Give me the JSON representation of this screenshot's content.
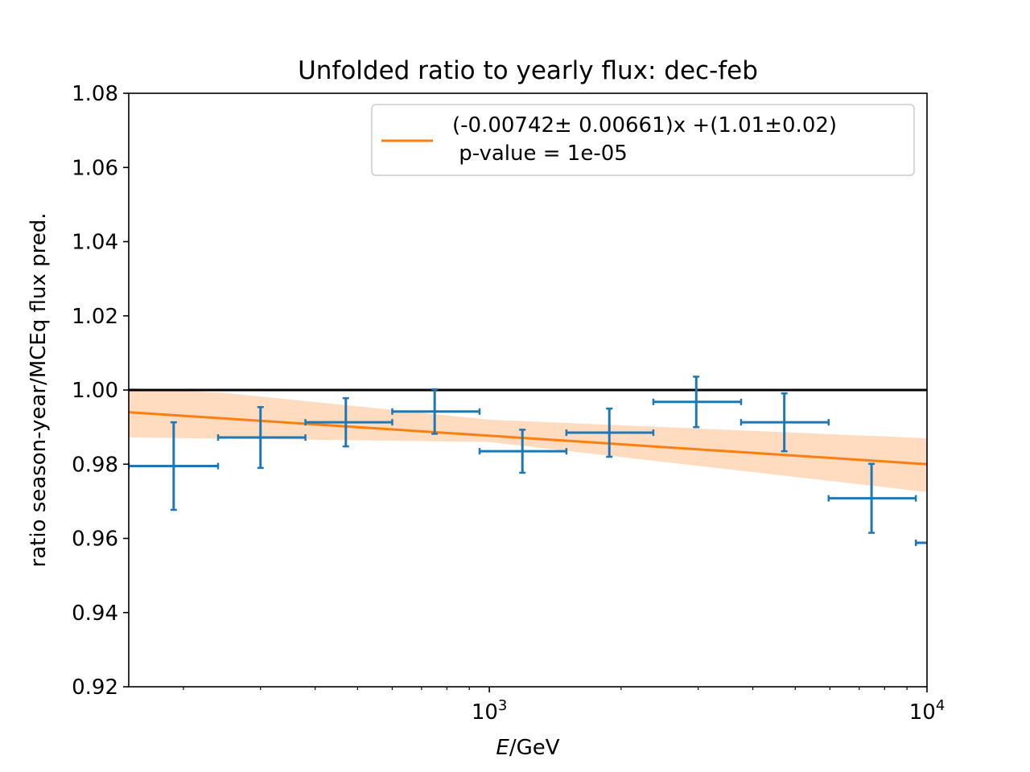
{
  "chart_data": {
    "type": "scatter",
    "title": "Unfolded ratio to yearly flux: dec-feb",
    "xlabel_italic": "E",
    "xlabel_rest": "/GeV",
    "ylabel": "ratio season-year/MCEq flux pred.",
    "xscale": "log",
    "xlim": [
      150,
      10000
    ],
    "ylim": [
      0.92,
      1.08
    ],
    "yticks": [
      {
        "value": 0.92,
        "label": "0.92"
      },
      {
        "value": 0.94,
        "label": "0.94"
      },
      {
        "value": 0.96,
        "label": "0.96"
      },
      {
        "value": 0.98,
        "label": "0.98"
      },
      {
        "value": 1.0,
        "label": "1.00"
      },
      {
        "value": 1.02,
        "label": "1.02"
      },
      {
        "value": 1.04,
        "label": "1.04"
      },
      {
        "value": 1.06,
        "label": "1.06"
      },
      {
        "value": 1.08,
        "label": "1.08"
      }
    ],
    "xticks_major": [
      {
        "value": 1000,
        "base": "10",
        "exp": "3"
      },
      {
        "value": 10000,
        "base": "10",
        "exp": "4"
      }
    ],
    "xticks_minor": [
      200,
      300,
      400,
      500,
      600,
      700,
      800,
      900,
      2000,
      3000,
      4000,
      5000,
      6000,
      7000,
      8000,
      9000
    ],
    "reference_line": {
      "y": 1.0,
      "color": "#000000"
    },
    "points": [
      {
        "x": 190,
        "xlo": 150,
        "xhi": 240,
        "y": 0.9795,
        "yerr": 0.0118
      },
      {
        "x": 300,
        "xlo": 240,
        "xhi": 380,
        "y": 0.9872,
        "yerr": 0.0082
      },
      {
        "x": 470,
        "xlo": 380,
        "xhi": 600,
        "y": 0.9913,
        "yerr": 0.0065
      },
      {
        "x": 750,
        "xlo": 600,
        "xhi": 950,
        "y": 0.9942,
        "yerr": 0.006
      },
      {
        "x": 1190,
        "xlo": 950,
        "xhi": 1500,
        "y": 0.9835,
        "yerr": 0.0058
      },
      {
        "x": 1880,
        "xlo": 1500,
        "xhi": 2370,
        "y": 0.9885,
        "yerr": 0.0065
      },
      {
        "x": 2970,
        "xlo": 2370,
        "xhi": 3760,
        "y": 0.9968,
        "yerr": 0.0068
      },
      {
        "x": 4720,
        "xlo": 3760,
        "xhi": 5960,
        "y": 0.9913,
        "yerr": 0.0078
      },
      {
        "x": 7470,
        "xlo": 5960,
        "xhi": 9430,
        "y": 0.9708,
        "yerr": 0.0093
      },
      {
        "x": 11840,
        "xlo": 9430,
        "xhi": 14900,
        "y": 0.9588,
        "yerr": 0.0108
      }
    ],
    "fit": {
      "color": "#ff7f0e",
      "band_color": "#ffdbbf",
      "line": [
        {
          "x": 150,
          "y": 0.994
        },
        {
          "x": 10000,
          "y": 0.98
        }
      ],
      "band_upper": [
        {
          "x": 150,
          "y": 1.0005
        },
        {
          "x": 250,
          "y": 0.9992
        },
        {
          "x": 1000,
          "y": 0.992
        },
        {
          "x": 10000,
          "y": 0.987
        }
      ],
      "band_lower": [
        {
          "x": 150,
          "y": 0.9872
        },
        {
          "x": 1000,
          "y": 0.986
        },
        {
          "x": 10000,
          "y": 0.9725
        }
      ]
    },
    "series_color": "#1f77b4",
    "legend": {
      "placement": "top-right",
      "line1": "(-0.00742± 0.00661)x +(1.01±0.02)",
      "line2": " p-value = 1e-05"
    }
  }
}
